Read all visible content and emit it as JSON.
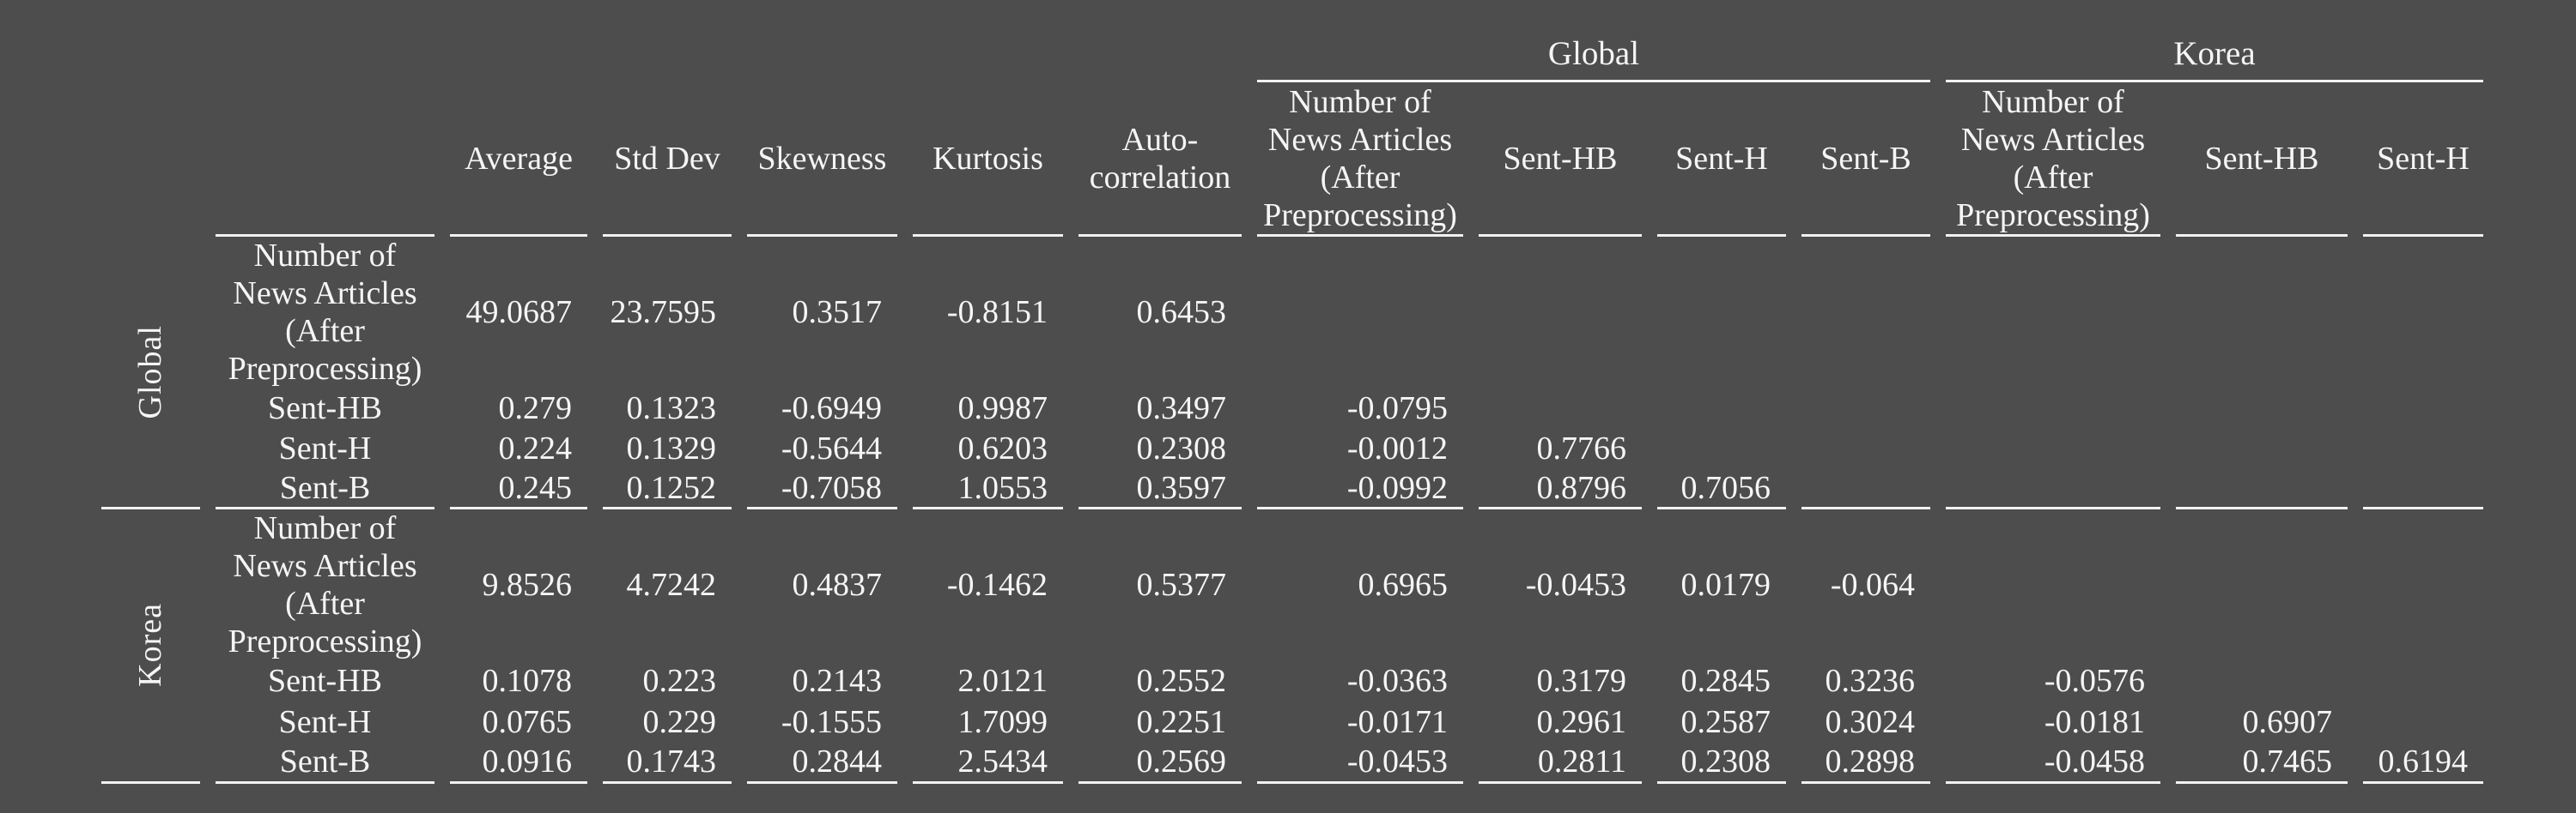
{
  "colors": {
    "background": "#4d4d4d",
    "text": "#f5f5f5",
    "rule": "#f2f2f2"
  },
  "table": {
    "stat_headers": [
      "Average",
      "Std Dev",
      "Skewness",
      "Kurtosis",
      "Auto-\ncorrelation"
    ],
    "global_group": {
      "label": "Global",
      "columns": [
        "Number of\nNews Articles\n(After\nPreprocessing)",
        "Sent-HB",
        "Sent-H",
        "Sent-B"
      ]
    },
    "korea_group": {
      "label": "Korea",
      "columns": [
        "Number of\nNews Articles\n(After\nPreprocessing)",
        "Sent-HB",
        "Sent-H"
      ]
    },
    "sections": [
      {
        "group": "Global",
        "rows": [
          {
            "label": "Number of\nNews Articles\n(After\nPreprocessing)",
            "values": [
              "49.0687",
              "23.7595",
              "0.3517",
              "-0.8151",
              "0.6453",
              "",
              "",
              "",
              "",
              "",
              "",
              ""
            ]
          },
          {
            "label": "Sent-HB",
            "values": [
              "0.279",
              "0.1323",
              "-0.6949",
              "0.9987",
              "0.3497",
              "-0.0795",
              "",
              "",
              "",
              "",
              "",
              ""
            ]
          },
          {
            "label": "Sent-H",
            "values": [
              "0.224",
              "0.1329",
              "-0.5644",
              "0.6203",
              "0.2308",
              "-0.0012",
              "0.7766",
              "",
              "",
              "",
              "",
              ""
            ]
          },
          {
            "label": "Sent-B",
            "values": [
              "0.245",
              "0.1252",
              "-0.7058",
              "1.0553",
              "0.3597",
              "-0.0992",
              "0.8796",
              "0.7056",
              "",
              "",
              "",
              ""
            ]
          }
        ]
      },
      {
        "group": "Korea",
        "rows": [
          {
            "label": "Number of\nNews Articles\n(After\nPreprocessing)",
            "values": [
              "9.8526",
              "4.7242",
              "0.4837",
              "-0.1462",
              "0.5377",
              "0.6965",
              "-0.0453",
              "0.0179",
              "-0.064",
              "",
              "",
              ""
            ]
          },
          {
            "label": "Sent-HB",
            "values": [
              "0.1078",
              "0.223",
              "0.2143",
              "2.0121",
              "0.2552",
              "-0.0363",
              "0.3179",
              "0.2845",
              "0.3236",
              "-0.0576",
              "",
              ""
            ]
          },
          {
            "label": "Sent-H",
            "values": [
              "0.0765",
              "0.229",
              "-0.1555",
              "1.7099",
              "0.2251",
              "-0.0171",
              "0.2961",
              "0.2587",
              "0.3024",
              "-0.0181",
              "0.6907",
              ""
            ]
          },
          {
            "label": "Sent-B",
            "values": [
              "0.0916",
              "0.1743",
              "0.2844",
              "2.5434",
              "0.2569",
              "-0.0453",
              "0.2811",
              "0.2308",
              "0.2898",
              "-0.0458",
              "0.7465",
              "0.6194"
            ]
          }
        ]
      }
    ]
  }
}
